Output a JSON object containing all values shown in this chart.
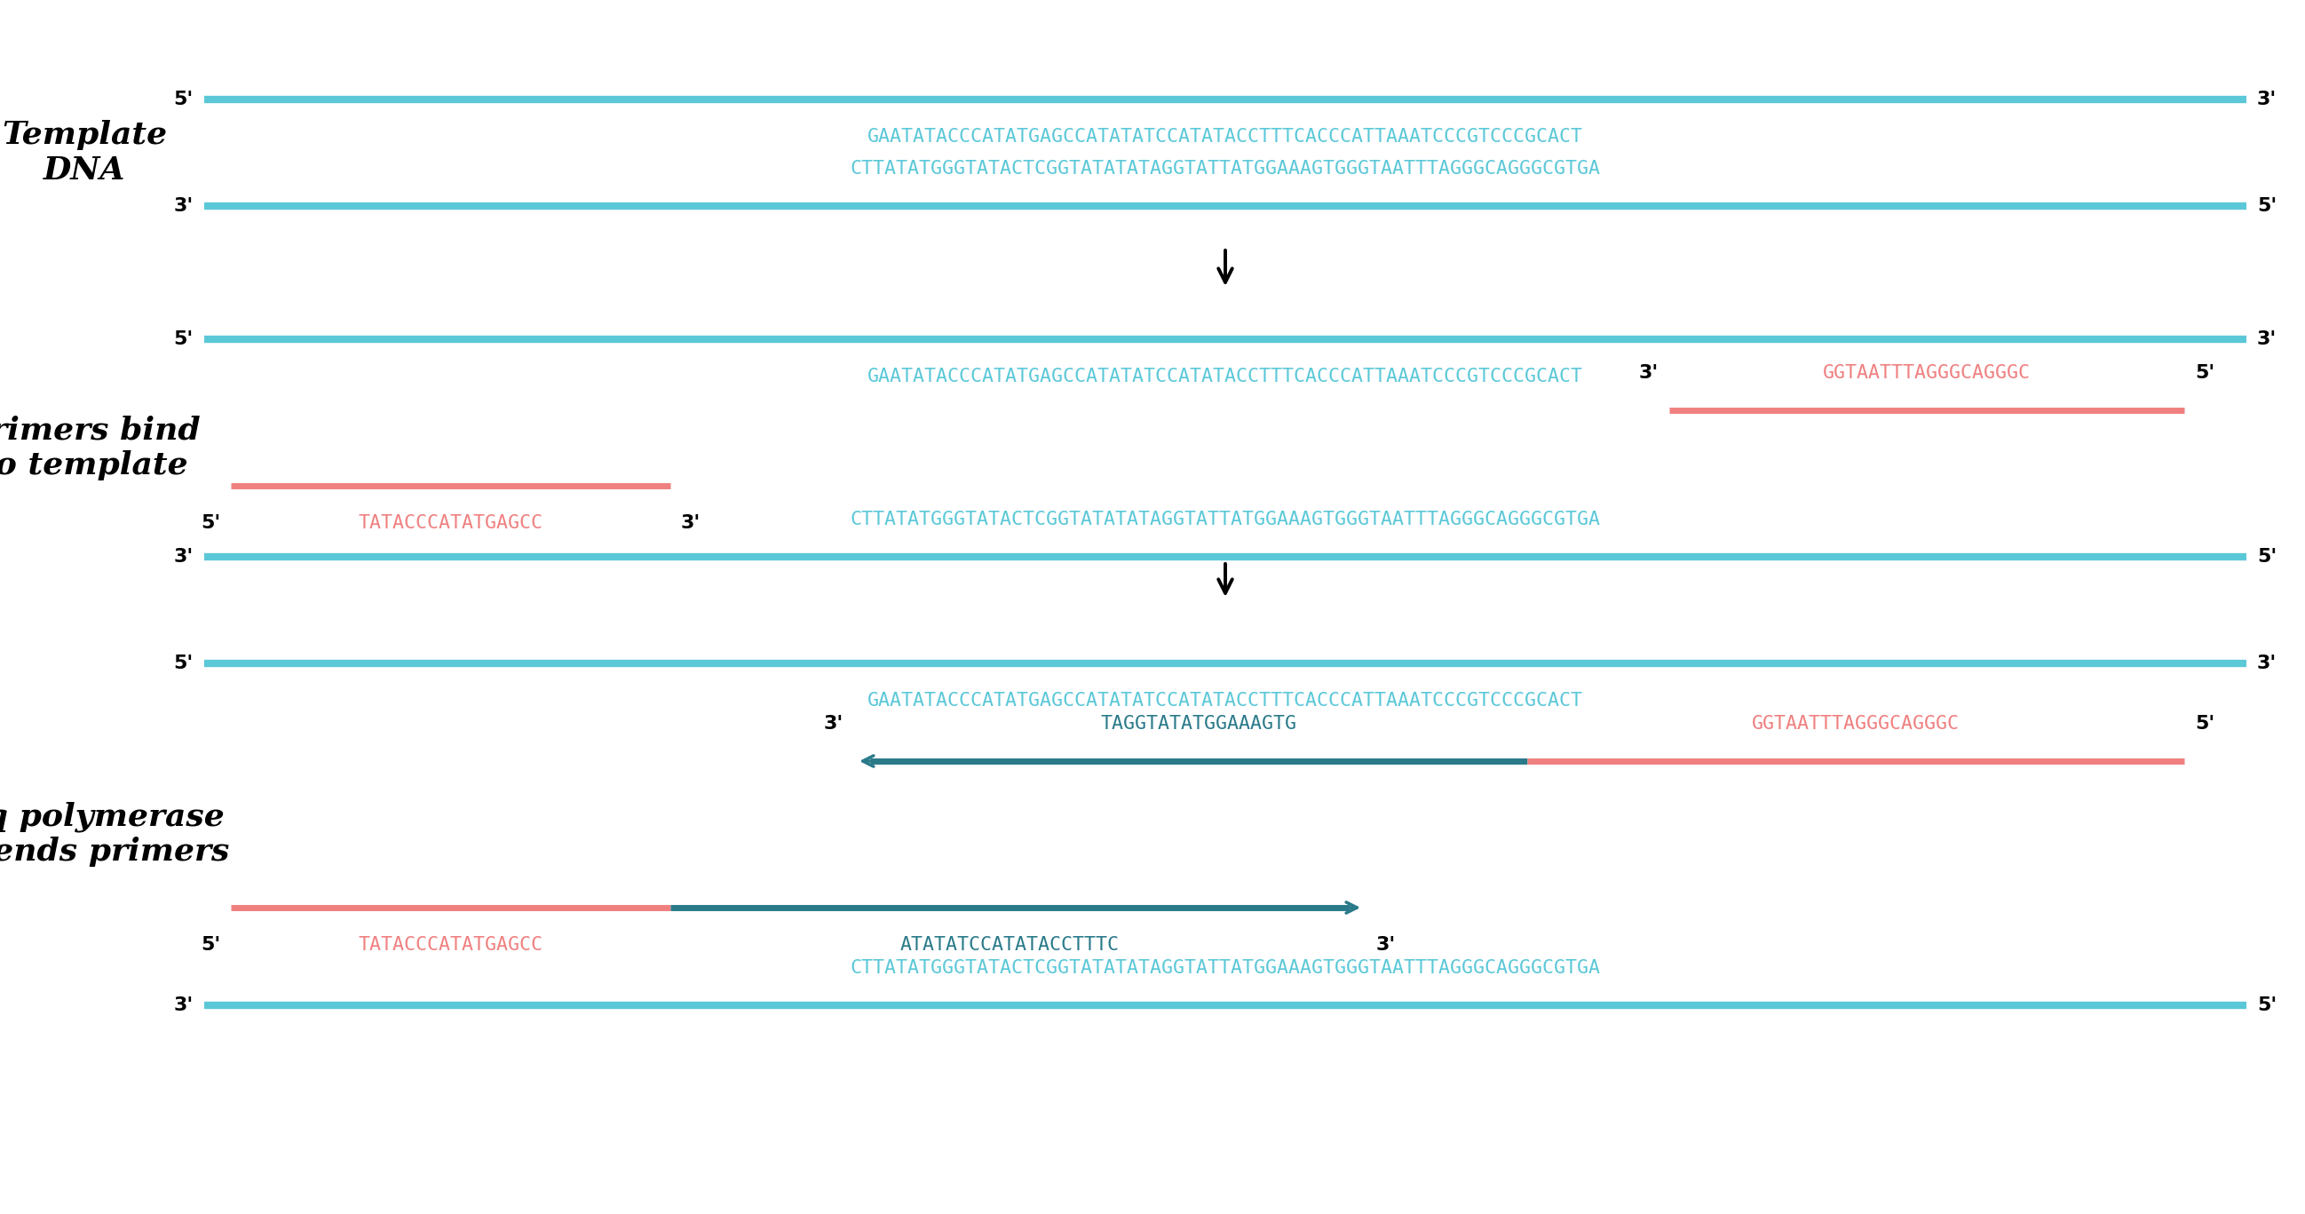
{
  "bg_color": "#ffffff",
  "dna_color": "#5bc8d8",
  "primer_color": "#f08080",
  "taq_new_color": "#2a7a8a",
  "label_color": "#000000",
  "top_seq": "GAATATACCCATATGAGCCATATATCCATATACCTTTCACCCATTAAATCCCGTCCCGCACT",
  "bot_seq_display": "CTTATATGGGTATACTCGGTATATATAGGTATTATGGAAAGTGGGTAATTTAGGGCAGGGCGTGA",
  "rev_primer": "GGTAATTTAGGGCAGGGC",
  "fwd_primer": "TATACCCATATGAGCC",
  "rev_taq_seq": "TAGGTATATGGAAAGTG",
  "fwd_taq_seq": "ATATATCCATATACCTTTC",
  "section1_label": "Template\nDNA",
  "section2_label": "Primers bind\nto template",
  "section3_label": "Taq polymerase\nextends primers"
}
